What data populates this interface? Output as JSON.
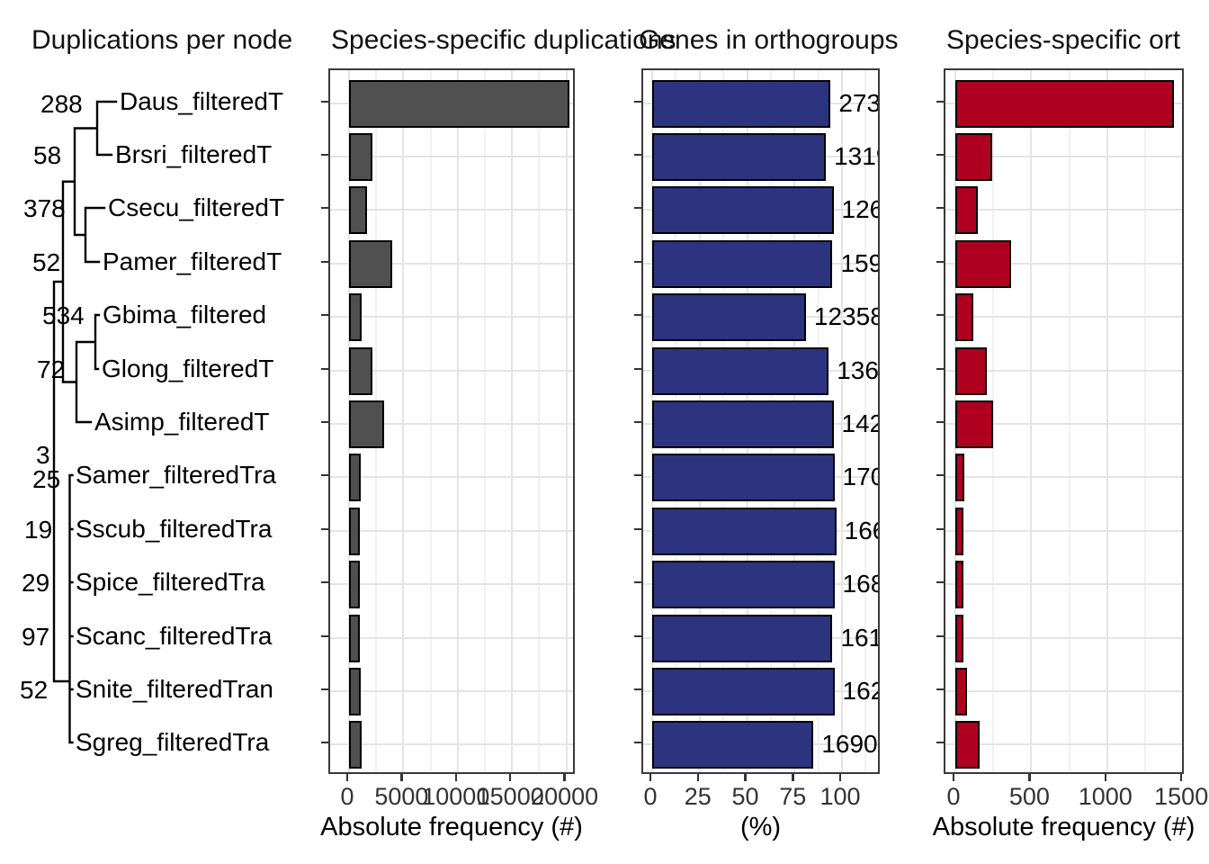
{
  "titles": {
    "tree": "Duplications per node",
    "dup": "Species-specific duplications",
    "genes": "Genes in orthogroups",
    "ortho": "Species-specific ort"
  },
  "tree": {
    "species": [
      "Daus_filteredT",
      "Brsri_filteredT",
      "Csecu_filteredT",
      "Pamer_filteredT",
      "Gbima_filtered",
      "Glong_filteredT",
      "Asimp_filteredT",
      "Samer_filteredTra",
      "Sscub_filteredTra",
      "Spice_filteredTra",
      "Scanc_filteredTra",
      "Snite_filteredTran",
      "Sgreg_filteredTra"
    ],
    "node_labels": [
      "288",
      "58",
      "378",
      "52",
      "534",
      "72",
      "3",
      "25",
      "19",
      "29",
      "97",
      "52"
    ]
  },
  "chart_data": [
    {
      "type": "bar",
      "orientation": "horizontal",
      "title": "Species-specific duplications",
      "xlabel": "Absolute frequency (#)",
      "categories": [
        "Daus_filteredT",
        "Brsri_filteredT",
        "Csecu_filteredT",
        "Pamer_filteredT",
        "Gbima_filtered",
        "Glong_filteredT",
        "Asimp_filteredT",
        "Samer_filteredTra",
        "Sscub_filteredTra",
        "Spice_filteredTra",
        "Scanc_filteredTra",
        "Snite_filteredTran",
        "Sgreg_filteredTra"
      ],
      "values": [
        20250,
        2150,
        1650,
        4000,
        1150,
        2150,
        3200,
        1050,
        1000,
        1000,
        1000,
        1100,
        1150
      ],
      "x_ticks": [
        0,
        5000,
        10000,
        15000,
        20000
      ],
      "x_tick_labels": [
        "0",
        "5000",
        "10000",
        "15000",
        "20000"
      ],
      "xlim": [
        0,
        21000
      ],
      "grid": true,
      "bar_color": "#505050",
      "bar_border": "#000000"
    },
    {
      "type": "bar",
      "orientation": "horizontal",
      "title": "Genes in orthogroups",
      "xlabel": "(%)",
      "categories": [
        "Daus_filteredT",
        "Brsri_filteredT",
        "Csecu_filteredT",
        "Pamer_filteredT",
        "Gbima_filtered",
        "Glong_filteredT",
        "Asimp_filteredT",
        "Samer_filteredTra",
        "Sscub_filteredTra",
        "Spice_filteredTra",
        "Scanc_filteredTra",
        "Snite_filteredTran",
        "Sgreg_filteredTra"
      ],
      "values": [
        94,
        91.5,
        95.5,
        95,
        81,
        93,
        95.5,
        96,
        97,
        96,
        95,
        96,
        85
      ],
      "bar_labels": [
        "273",
        "1319",
        "126",
        "159",
        "12358",
        "136",
        "142",
        "170",
        "166",
        "168",
        "161",
        "162",
        "1690"
      ],
      "x_ticks": [
        0,
        25,
        50,
        75,
        100
      ],
      "x_tick_labels": [
        "0",
        "25",
        "50",
        "75",
        "100"
      ],
      "xlim": [
        0,
        115
      ],
      "grid": true,
      "bar_color": "#2C3480",
      "bar_border": "#000000"
    },
    {
      "type": "bar",
      "orientation": "horizontal",
      "title": "Species-specific ort",
      "xlabel": "Absolute frequency (#)",
      "categories": [
        "Daus_filteredT",
        "Brsri_filteredT",
        "Csecu_filteredT",
        "Pamer_filteredT",
        "Gbima_filtered",
        "Glong_filteredT",
        "Asimp_filteredT",
        "Samer_filteredTra",
        "Sscub_filteredTra",
        "Spice_filteredTra",
        "Scanc_filteredTra",
        "Snite_filteredTran",
        "Sgreg_filteredTra"
      ],
      "values": [
        1440,
        240,
        150,
        370,
        120,
        210,
        250,
        60,
        55,
        55,
        55,
        75,
        160
      ],
      "x_ticks": [
        0,
        500,
        1000,
        1500
      ],
      "x_tick_labels": [
        "0",
        "500",
        "1000",
        "1500"
      ],
      "xlim": [
        0,
        1550
      ],
      "grid": true,
      "bar_color": "#B0001F",
      "bar_border": "#000000"
    }
  ]
}
